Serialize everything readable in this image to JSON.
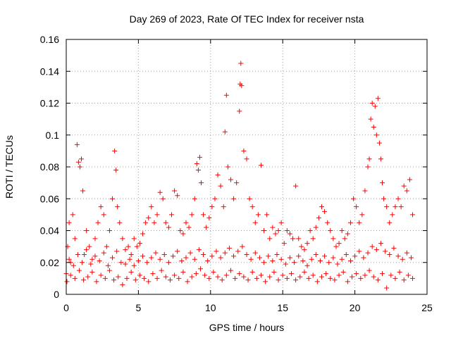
{
  "chart_data": {
    "type": "scatter",
    "title": "Day 269 of 2023, Rate Of TEC Index for receiver nsta",
    "xlabel": "GPS time / hours",
    "ylabel": "ROTI / TECUs",
    "xlim": [
      0,
      25
    ],
    "ylim": [
      0,
      0.16
    ],
    "grid": true,
    "marker": "+",
    "colors": {
      "marker": "#ff0000",
      "grid": "#a0a0a0",
      "axis": "#000000"
    },
    "x_ticks": [
      {
        "value": 0,
        "label": "0"
      },
      {
        "value": 5,
        "label": "5"
      },
      {
        "value": 10,
        "label": "10"
      },
      {
        "value": 15,
        "label": "15"
      },
      {
        "value": 20,
        "label": "20"
      },
      {
        "value": 25,
        "label": "25"
      }
    ],
    "y_ticks": [
      {
        "value": 0,
        "label": "0"
      },
      {
        "value": 0.02,
        "label": "0.02"
      },
      {
        "value": 0.04,
        "label": "0.04"
      },
      {
        "value": 0.06,
        "label": "0.06"
      },
      {
        "value": 0.08,
        "label": "0.08"
      },
      {
        "value": 0.1,
        "label": "0.1"
      },
      {
        "value": 0.12,
        "label": "0.12"
      },
      {
        "value": 0.14,
        "label": "0.14"
      },
      {
        "value": 0.16,
        "label": "0.16"
      }
    ],
    "series": [
      {
        "name": "ROTI",
        "points": [
          [
            0.0,
            0.013
          ],
          [
            0.1,
            0.03
          ],
          [
            0.2,
            0.045
          ],
          [
            0.3,
            0.02
          ],
          [
            0.45,
            0.05
          ],
          [
            0.6,
            0.035
          ],
          [
            0.75,
            0.094
          ],
          [
            0.85,
            0.083
          ],
          [
            0.95,
            0.08
          ],
          [
            1.05,
            0.085
          ],
          [
            1.15,
            0.065
          ],
          [
            1.25,
            0.025
          ],
          [
            1.4,
            0.04
          ],
          [
            1.6,
            0.03
          ],
          [
            1.8,
            0.022
          ],
          [
            2.0,
            0.035
          ],
          [
            2.2,
            0.045
          ],
          [
            2.4,
            0.055
          ],
          [
            2.6,
            0.05
          ],
          [
            2.8,
            0.03
          ],
          [
            3.0,
            0.04
          ],
          [
            3.2,
            0.06
          ],
          [
            3.35,
            0.09
          ],
          [
            3.45,
            0.078
          ],
          [
            3.55,
            0.055
          ],
          [
            3.7,
            0.045
          ],
          [
            3.9,
            0.035
          ],
          [
            4.1,
            0.028
          ],
          [
            4.3,
            0.03
          ],
          [
            4.5,
            0.025
          ],
          [
            4.7,
            0.035
          ],
          [
            4.9,
            0.03
          ],
          [
            5.1,
            0.032
          ],
          [
            5.3,
            0.038
          ],
          [
            5.5,
            0.045
          ],
          [
            5.7,
            0.048
          ],
          [
            5.9,
            0.055
          ],
          [
            6.1,
            0.045
          ],
          [
            6.3,
            0.05
          ],
          [
            6.5,
            0.064
          ],
          [
            6.7,
            0.06
          ],
          [
            6.9,
            0.045
          ],
          [
            7.1,
            0.042
          ],
          [
            7.3,
            0.05
          ],
          [
            7.5,
            0.065
          ],
          [
            7.7,
            0.062
          ],
          [
            7.9,
            0.04
          ],
          [
            8.1,
            0.038
          ],
          [
            8.3,
            0.045
          ],
          [
            8.5,
            0.042
          ],
          [
            8.7,
            0.05
          ],
          [
            8.9,
            0.06
          ],
          [
            9.05,
            0.082
          ],
          [
            9.15,
            0.078
          ],
          [
            9.25,
            0.086
          ],
          [
            9.35,
            0.07
          ],
          [
            9.5,
            0.05
          ],
          [
            9.7,
            0.042
          ],
          [
            9.9,
            0.048
          ],
          [
            10.1,
            0.055
          ],
          [
            10.3,
            0.06
          ],
          [
            10.5,
            0.075
          ],
          [
            10.7,
            0.068
          ],
          [
            10.9,
            0.055
          ],
          [
            11.0,
            0.102
          ],
          [
            11.1,
            0.125
          ],
          [
            11.2,
            0.08
          ],
          [
            11.4,
            0.072
          ],
          [
            11.6,
            0.06
          ],
          [
            11.8,
            0.07
          ],
          [
            12.0,
            0.115
          ],
          [
            12.05,
            0.132
          ],
          [
            12.1,
            0.145
          ],
          [
            12.15,
            0.131
          ],
          [
            12.3,
            0.09
          ],
          [
            12.5,
            0.085
          ],
          [
            12.7,
            0.06
          ],
          [
            12.9,
            0.055
          ],
          [
            13.1,
            0.045
          ],
          [
            13.3,
            0.05
          ],
          [
            13.5,
            0.081
          ],
          [
            13.7,
            0.04
          ],
          [
            13.9,
            0.05
          ],
          [
            14.1,
            0.035
          ],
          [
            14.3,
            0.042
          ],
          [
            14.5,
            0.038
          ],
          [
            14.7,
            0.04
          ],
          [
            14.9,
            0.045
          ],
          [
            15.1,
            0.032
          ],
          [
            15.3,
            0.04
          ],
          [
            15.5,
            0.038
          ],
          [
            15.7,
            0.035
          ],
          [
            15.9,
            0.068
          ],
          [
            16.1,
            0.035
          ],
          [
            16.3,
            0.03
          ],
          [
            16.5,
            0.028
          ],
          [
            16.7,
            0.032
          ],
          [
            16.9,
            0.04
          ],
          [
            17.1,
            0.035
          ],
          [
            17.3,
            0.042
          ],
          [
            17.5,
            0.048
          ],
          [
            17.7,
            0.055
          ],
          [
            17.9,
            0.052
          ],
          [
            18.1,
            0.045
          ],
          [
            18.3,
            0.04
          ],
          [
            18.5,
            0.035
          ],
          [
            18.7,
            0.03
          ],
          [
            18.9,
            0.032
          ],
          [
            19.1,
            0.04
          ],
          [
            19.3,
            0.035
          ],
          [
            19.5,
            0.038
          ],
          [
            19.7,
            0.045
          ],
          [
            19.9,
            0.06
          ],
          [
            20.1,
            0.055
          ],
          [
            20.3,
            0.045
          ],
          [
            20.5,
            0.05
          ],
          [
            20.7,
            0.065
          ],
          [
            20.9,
            0.08
          ],
          [
            21.0,
            0.085
          ],
          [
            21.1,
            0.11
          ],
          [
            21.2,
            0.12
          ],
          [
            21.3,
            0.105
          ],
          [
            21.4,
            0.118
          ],
          [
            21.5,
            0.1
          ],
          [
            21.6,
            0.123
          ],
          [
            21.7,
            0.095
          ],
          [
            21.8,
            0.085
          ],
          [
            21.9,
            0.07
          ],
          [
            22.0,
            0.06
          ],
          [
            22.2,
            0.055
          ],
          [
            22.4,
            0.045
          ],
          [
            22.6,
            0.05
          ],
          [
            22.8,
            0.055
          ],
          [
            23.0,
            0.06
          ],
          [
            23.2,
            0.055
          ],
          [
            23.4,
            0.068
          ],
          [
            23.6,
            0.065
          ],
          [
            23.8,
            0.072
          ],
          [
            24.0,
            0.05
          ],
          [
            0.05,
            0.008
          ],
          [
            0.3,
            0.012
          ],
          [
            0.6,
            0.01
          ],
          [
            0.9,
            0.015
          ],
          [
            1.2,
            0.009
          ],
          [
            1.5,
            0.011
          ],
          [
            1.8,
            0.014
          ],
          [
            2.1,
            0.008
          ],
          [
            2.4,
            0.012
          ],
          [
            2.7,
            0.01
          ],
          [
            3.0,
            0.015
          ],
          [
            3.3,
            0.009
          ],
          [
            3.6,
            0.011
          ],
          [
            3.9,
            0.006
          ],
          [
            4.2,
            0.01
          ],
          [
            4.5,
            0.014
          ],
          [
            4.8,
            0.009
          ],
          [
            5.1,
            0.012
          ],
          [
            5.4,
            0.01
          ],
          [
            5.7,
            0.008
          ],
          [
            6.0,
            0.013
          ],
          [
            6.3,
            0.01
          ],
          [
            6.6,
            0.015
          ],
          [
            6.9,
            0.011
          ],
          [
            7.2,
            0.009
          ],
          [
            7.5,
            0.012
          ],
          [
            7.8,
            0.01
          ],
          [
            8.1,
            0.014
          ],
          [
            8.4,
            0.008
          ],
          [
            8.7,
            0.011
          ],
          [
            9.0,
            0.013
          ],
          [
            9.3,
            0.016
          ],
          [
            9.6,
            0.012
          ],
          [
            9.9,
            0.01
          ],
          [
            10.2,
            0.014
          ],
          [
            10.5,
            0.011
          ],
          [
            10.8,
            0.009
          ],
          [
            11.1,
            0.012
          ],
          [
            11.4,
            0.015
          ],
          [
            11.7,
            0.01
          ],
          [
            12.0,
            0.013
          ],
          [
            12.3,
            0.011
          ],
          [
            12.6,
            0.009
          ],
          [
            12.9,
            0.014
          ],
          [
            13.2,
            0.01
          ],
          [
            13.5,
            0.012
          ],
          [
            13.8,
            0.008
          ],
          [
            14.1,
            0.011
          ],
          [
            14.4,
            0.014
          ],
          [
            14.7,
            0.009
          ],
          [
            15.0,
            0.012
          ],
          [
            15.3,
            0.01
          ],
          [
            15.6,
            0.013
          ],
          [
            15.9,
            0.009
          ],
          [
            16.2,
            0.011
          ],
          [
            16.5,
            0.014
          ],
          [
            16.8,
            0.01
          ],
          [
            17.1,
            0.012
          ],
          [
            17.4,
            0.008
          ],
          [
            17.7,
            0.011
          ],
          [
            18.0,
            0.013
          ],
          [
            18.3,
            0.01
          ],
          [
            18.6,
            0.009
          ],
          [
            18.9,
            0.012
          ],
          [
            19.2,
            0.014
          ],
          [
            19.5,
            0.008
          ],
          [
            19.8,
            0.011
          ],
          [
            20.1,
            0.013
          ],
          [
            20.4,
            0.01
          ],
          [
            20.7,
            0.012
          ],
          [
            21.0,
            0.015
          ],
          [
            21.3,
            0.011
          ],
          [
            21.6,
            0.009
          ],
          [
            21.9,
            0.013
          ],
          [
            22.2,
            0.004
          ],
          [
            22.5,
            0.012
          ],
          [
            22.8,
            0.01
          ],
          [
            23.1,
            0.014
          ],
          [
            23.4,
            0.009
          ],
          [
            23.7,
            0.012
          ],
          [
            24.0,
            0.01
          ],
          [
            0.2,
            0.022
          ],
          [
            0.5,
            0.018
          ],
          [
            0.8,
            0.025
          ],
          [
            1.1,
            0.02
          ],
          [
            1.4,
            0.028
          ],
          [
            1.7,
            0.019
          ],
          [
            2.0,
            0.024
          ],
          [
            2.3,
            0.021
          ],
          [
            2.6,
            0.026
          ],
          [
            2.9,
            0.018
          ],
          [
            3.2,
            0.023
          ],
          [
            3.5,
            0.027
          ],
          [
            3.8,
            0.02
          ],
          [
            4.1,
            0.019
          ],
          [
            4.4,
            0.022
          ],
          [
            4.7,
            0.018
          ],
          [
            5.0,
            0.021
          ],
          [
            5.3,
            0.024
          ],
          [
            5.6,
            0.02
          ],
          [
            5.9,
            0.023
          ],
          [
            6.2,
            0.026
          ],
          [
            6.5,
            0.022
          ],
          [
            6.8,
            0.025
          ],
          [
            7.1,
            0.02
          ],
          [
            7.4,
            0.024
          ],
          [
            7.7,
            0.027
          ],
          [
            8.0,
            0.021
          ],
          [
            8.3,
            0.023
          ],
          [
            8.6,
            0.026
          ],
          [
            8.9,
            0.022
          ],
          [
            9.2,
            0.028
          ],
          [
            9.5,
            0.025
          ],
          [
            9.8,
            0.021
          ],
          [
            10.1,
            0.024
          ],
          [
            10.4,
            0.027
          ],
          [
            10.7,
            0.023
          ],
          [
            11.0,
            0.026
          ],
          [
            11.3,
            0.029
          ],
          [
            11.6,
            0.024
          ],
          [
            11.9,
            0.027
          ],
          [
            12.2,
            0.03
          ],
          [
            12.5,
            0.025
          ],
          [
            12.8,
            0.022
          ],
          [
            13.1,
            0.026
          ],
          [
            13.4,
            0.023
          ],
          [
            13.7,
            0.02
          ],
          [
            14.0,
            0.024
          ],
          [
            14.3,
            0.021
          ],
          [
            14.6,
            0.025
          ],
          [
            14.9,
            0.022
          ],
          [
            15.2,
            0.019
          ],
          [
            15.5,
            0.023
          ],
          [
            15.8,
            0.02
          ],
          [
            16.1,
            0.024
          ],
          [
            16.4,
            0.021
          ],
          [
            16.7,
            0.018
          ],
          [
            17.0,
            0.022
          ],
          [
            17.3,
            0.025
          ],
          [
            17.6,
            0.021
          ],
          [
            17.9,
            0.024
          ],
          [
            18.2,
            0.02
          ],
          [
            18.5,
            0.023
          ],
          [
            18.8,
            0.019
          ],
          [
            19.1,
            0.022
          ],
          [
            19.4,
            0.025
          ],
          [
            19.7,
            0.021
          ],
          [
            20.0,
            0.024
          ],
          [
            20.3,
            0.027
          ],
          [
            20.6,
            0.023
          ],
          [
            20.9,
            0.026
          ],
          [
            21.2,
            0.03
          ],
          [
            21.5,
            0.028
          ],
          [
            21.8,
            0.032
          ],
          [
            22.1,
            0.027
          ],
          [
            22.4,
            0.025
          ],
          [
            22.7,
            0.029
          ],
          [
            23.0,
            0.024
          ],
          [
            23.3,
            0.022
          ],
          [
            23.6,
            0.026
          ],
          [
            23.9,
            0.023
          ]
        ]
      }
    ]
  }
}
